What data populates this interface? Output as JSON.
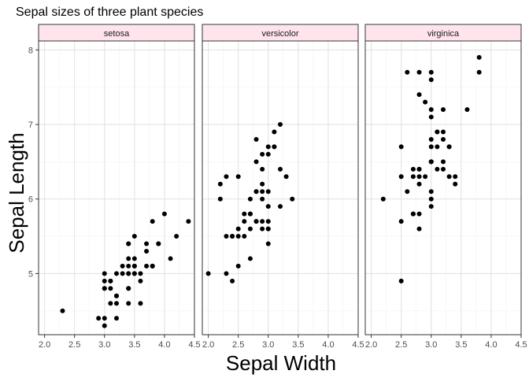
{
  "chart_data": {
    "type": "scatter",
    "title": "Sepal sizes of three plant species",
    "xlabel": "Sepal Width",
    "ylabel": "Sepal Length",
    "xlim": [
      1.9,
      4.5
    ],
    "ylim": [
      4.18,
      8.12
    ],
    "x_ticks": [
      2.0,
      2.5,
      3.0,
      3.5,
      4.0,
      4.5
    ],
    "x_tick_labels": [
      "2.0",
      "2.5",
      "3.0",
      "3.5",
      "4.0",
      "4.5"
    ],
    "y_ticks": [
      5,
      6,
      7,
      8
    ],
    "y_tick_labels": [
      "5",
      "6",
      "7",
      "8"
    ],
    "grid": true,
    "colors": {
      "point": "#000000",
      "strip_fill": "#ffe4ec",
      "strip_border": "#333333",
      "panel_border": "#333333",
      "grid_major": "#e0e0e0",
      "grid_minor": "#f2f2f2"
    },
    "panels": [
      {
        "label": "setosa",
        "points": [
          [
            3.5,
            5.1
          ],
          [
            3.0,
            4.9
          ],
          [
            3.2,
            4.7
          ],
          [
            3.1,
            4.6
          ],
          [
            3.6,
            5.0
          ],
          [
            3.9,
            5.4
          ],
          [
            3.4,
            4.6
          ],
          [
            3.4,
            5.0
          ],
          [
            2.9,
            4.4
          ],
          [
            3.1,
            4.9
          ],
          [
            3.7,
            5.4
          ],
          [
            3.4,
            4.8
          ],
          [
            3.0,
            4.8
          ],
          [
            3.0,
            4.3
          ],
          [
            4.0,
            5.8
          ],
          [
            4.4,
            5.7
          ],
          [
            3.9,
            5.4
          ],
          [
            3.5,
            5.1
          ],
          [
            3.8,
            5.7
          ],
          [
            3.8,
            5.1
          ],
          [
            3.4,
            5.4
          ],
          [
            3.7,
            5.1
          ],
          [
            3.6,
            4.6
          ],
          [
            3.3,
            5.1
          ],
          [
            3.4,
            4.8
          ],
          [
            3.0,
            5.0
          ],
          [
            3.4,
            5.0
          ],
          [
            3.5,
            5.2
          ],
          [
            3.4,
            5.2
          ],
          [
            3.2,
            4.7
          ],
          [
            3.1,
            4.8
          ],
          [
            3.4,
            5.4
          ],
          [
            4.1,
            5.2
          ],
          [
            4.2,
            5.5
          ],
          [
            3.1,
            4.9
          ],
          [
            3.2,
            5.0
          ],
          [
            3.5,
            5.5
          ],
          [
            3.6,
            4.9
          ],
          [
            3.0,
            4.4
          ],
          [
            3.4,
            5.1
          ],
          [
            3.5,
            5.0
          ],
          [
            2.3,
            4.5
          ],
          [
            3.2,
            4.4
          ],
          [
            3.5,
            5.0
          ],
          [
            3.8,
            5.1
          ],
          [
            3.0,
            4.8
          ],
          [
            3.8,
            5.1
          ],
          [
            3.2,
            4.6
          ],
          [
            3.7,
            5.3
          ],
          [
            3.3,
            5.0
          ]
        ]
      },
      {
        "label": "versicolor",
        "points": [
          [
            3.2,
            7.0
          ],
          [
            3.2,
            6.4
          ],
          [
            3.1,
            6.9
          ],
          [
            2.3,
            5.5
          ],
          [
            2.8,
            6.5
          ],
          [
            2.8,
            5.7
          ],
          [
            3.3,
            6.3
          ],
          [
            2.4,
            4.9
          ],
          [
            2.9,
            6.6
          ],
          [
            2.7,
            5.2
          ],
          [
            2.0,
            5.0
          ],
          [
            3.0,
            5.9
          ],
          [
            2.2,
            6.0
          ],
          [
            2.9,
            6.1
          ],
          [
            2.9,
            5.6
          ],
          [
            3.1,
            6.7
          ],
          [
            3.0,
            5.6
          ],
          [
            2.7,
            5.8
          ],
          [
            2.2,
            6.2
          ],
          [
            2.5,
            5.6
          ],
          [
            3.2,
            5.9
          ],
          [
            2.8,
            6.1
          ],
          [
            2.5,
            6.3
          ],
          [
            2.8,
            6.1
          ],
          [
            2.9,
            6.4
          ],
          [
            3.0,
            6.6
          ],
          [
            2.8,
            6.8
          ],
          [
            3.0,
            6.7
          ],
          [
            2.9,
            6.0
          ],
          [
            2.6,
            5.7
          ],
          [
            2.4,
            5.5
          ],
          [
            2.4,
            5.5
          ],
          [
            2.7,
            5.8
          ],
          [
            2.7,
            6.0
          ],
          [
            3.0,
            5.4
          ],
          [
            3.4,
            6.0
          ],
          [
            3.1,
            6.7
          ],
          [
            2.3,
            6.3
          ],
          [
            3.0,
            5.6
          ],
          [
            2.5,
            5.5
          ],
          [
            2.6,
            5.5
          ],
          [
            3.0,
            6.1
          ],
          [
            2.6,
            5.8
          ],
          [
            2.3,
            5.0
          ],
          [
            2.7,
            5.6
          ],
          [
            3.0,
            5.7
          ],
          [
            2.9,
            5.7
          ],
          [
            2.9,
            6.2
          ],
          [
            2.5,
            5.1
          ],
          [
            2.8,
            5.7
          ]
        ]
      },
      {
        "label": "virginica",
        "points": [
          [
            3.3,
            6.3
          ],
          [
            2.7,
            5.8
          ],
          [
            3.0,
            7.1
          ],
          [
            2.9,
            6.3
          ],
          [
            3.0,
            6.5
          ],
          [
            3.0,
            7.6
          ],
          [
            2.5,
            4.9
          ],
          [
            2.9,
            7.3
          ],
          [
            2.5,
            6.7
          ],
          [
            3.6,
            7.2
          ],
          [
            3.2,
            6.5
          ],
          [
            2.7,
            6.4
          ],
          [
            3.0,
            6.8
          ],
          [
            2.5,
            5.7
          ],
          [
            2.8,
            5.8
          ],
          [
            3.2,
            6.4
          ],
          [
            3.0,
            6.5
          ],
          [
            3.8,
            7.7
          ],
          [
            2.6,
            7.7
          ],
          [
            2.2,
            6.0
          ],
          [
            3.2,
            6.9
          ],
          [
            2.8,
            5.6
          ],
          [
            2.8,
            7.7
          ],
          [
            2.7,
            6.3
          ],
          [
            3.3,
            6.7
          ],
          [
            3.2,
            7.2
          ],
          [
            2.8,
            6.2
          ],
          [
            3.0,
            6.1
          ],
          [
            2.8,
            6.4
          ],
          [
            3.0,
            7.2
          ],
          [
            2.8,
            7.4
          ],
          [
            3.8,
            7.9
          ],
          [
            2.8,
            6.4
          ],
          [
            2.8,
            6.3
          ],
          [
            2.6,
            6.1
          ],
          [
            3.0,
            7.7
          ],
          [
            3.4,
            6.3
          ],
          [
            3.1,
            6.4
          ],
          [
            3.0,
            6.0
          ],
          [
            3.1,
            6.9
          ],
          [
            3.1,
            6.7
          ],
          [
            3.1,
            6.9
          ],
          [
            2.7,
            5.8
          ],
          [
            3.2,
            6.8
          ],
          [
            3.3,
            6.7
          ],
          [
            3.0,
            6.7
          ],
          [
            2.5,
            6.3
          ],
          [
            3.0,
            6.5
          ],
          [
            3.4,
            6.2
          ],
          [
            3.0,
            5.9
          ]
        ]
      }
    ]
  }
}
